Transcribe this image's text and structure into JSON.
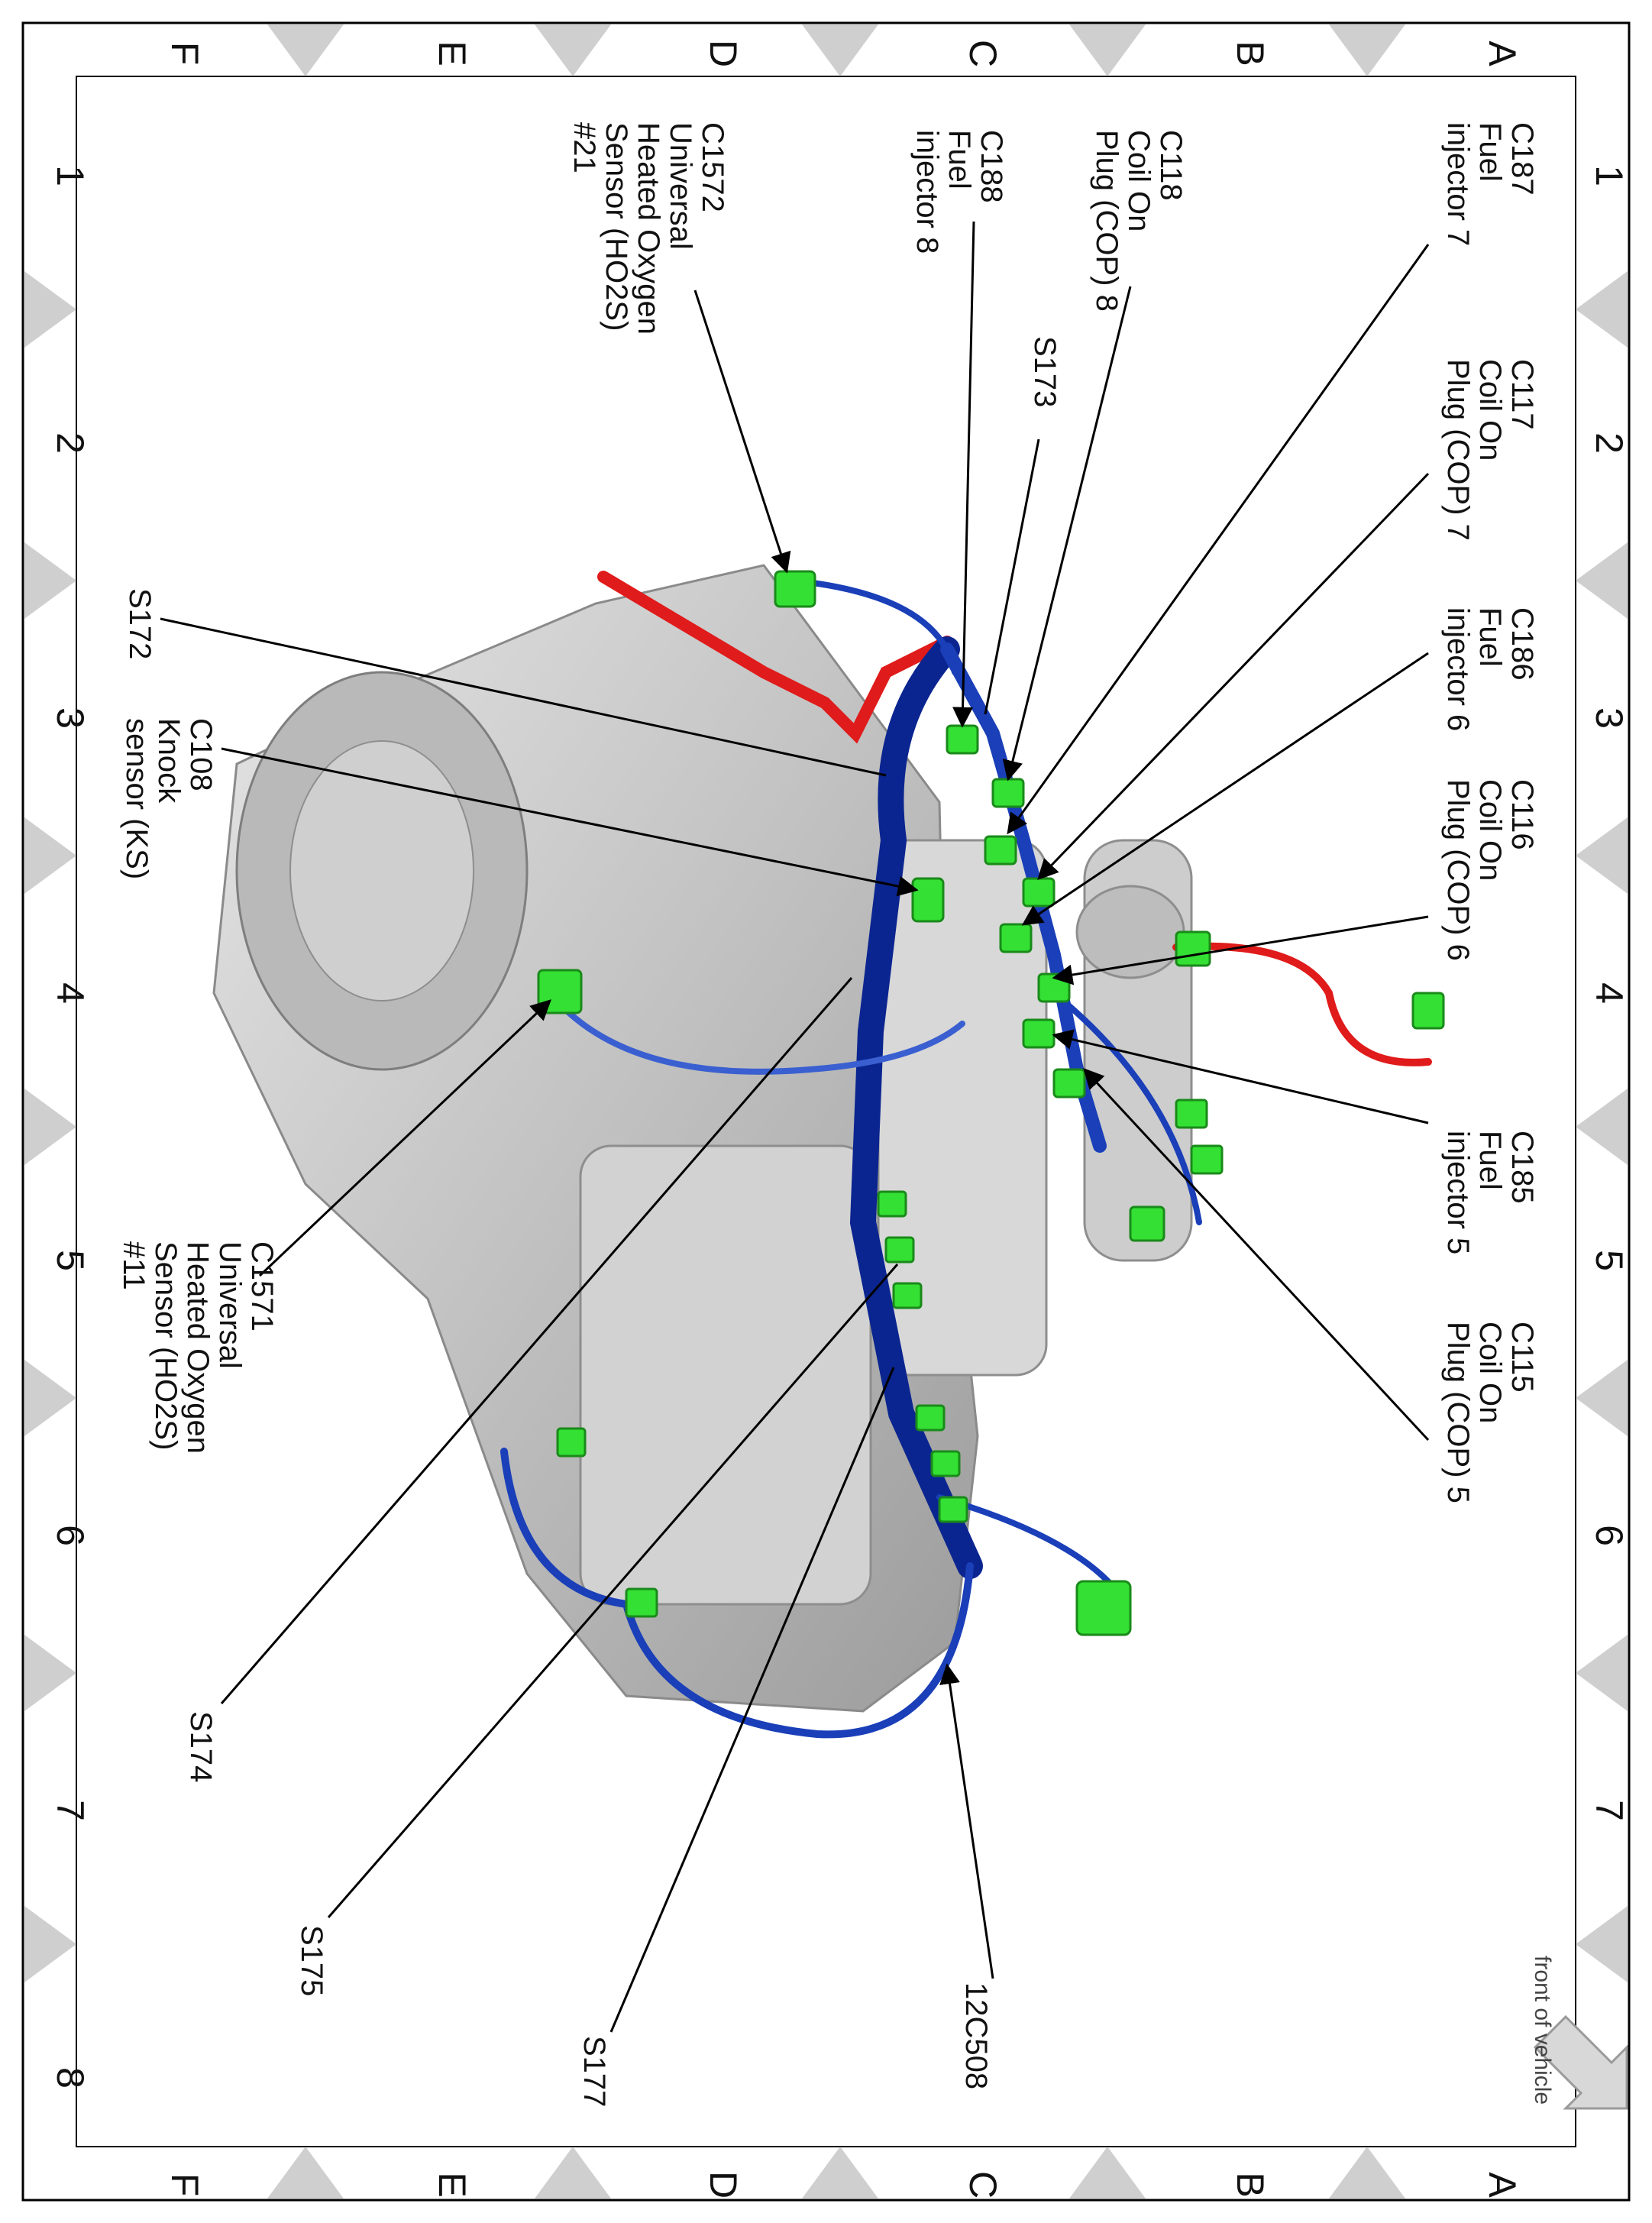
{
  "grid": {
    "rows": [
      "A",
      "B",
      "C",
      "D",
      "E",
      "F"
    ],
    "columns": [
      "1",
      "2",
      "3",
      "4",
      "5",
      "6",
      "7",
      "8"
    ]
  },
  "labels": {
    "c187": [
      "C187",
      "Fuel",
      "injector 7"
    ],
    "c117": [
      "C117",
      "Coil On",
      "Plug (COP) 7"
    ],
    "c186": [
      "C186",
      "Fuel",
      "injector 6"
    ],
    "c116": [
      "C116",
      "Coil On",
      "Plug (COP) 6"
    ],
    "c185": [
      "C185",
      "Fuel",
      "injector 5"
    ],
    "c115": [
      "C115",
      "Coil On",
      "Plug (COP) 5"
    ],
    "c118": [
      "C118",
      "Coil On",
      "Plug (COP) 8"
    ],
    "s173": [
      "S173"
    ],
    "c188": [
      "C188",
      "Fuel",
      "injector 8"
    ],
    "c1572": [
      "C1572",
      "Universal",
      "Heated Oxygen",
      "Sensor (HO2S)",
      "#21"
    ],
    "s172": [
      "S172"
    ],
    "c108": [
      "C108",
      "Knock",
      "sensor (KS)"
    ],
    "c1571": [
      "C1571",
      "Universal",
      "Heated Oxygen",
      "Sensor (HO2S)",
      "#11"
    ],
    "s174": [
      "S174"
    ],
    "s175": [
      "S175"
    ],
    "s177": [
      "S177"
    ],
    "c12c508": [
      "12C508"
    ]
  },
  "front_of_vehicle": "front of vehicle",
  "colors": {
    "harness_blue": "#1a3fb8",
    "harness_dark": "#0b2590",
    "wire_red": "#e01b1b",
    "connector_green": "#33e033",
    "engine_gray": "#c9c9c9",
    "frame_gray": "#cfcfcf"
  }
}
